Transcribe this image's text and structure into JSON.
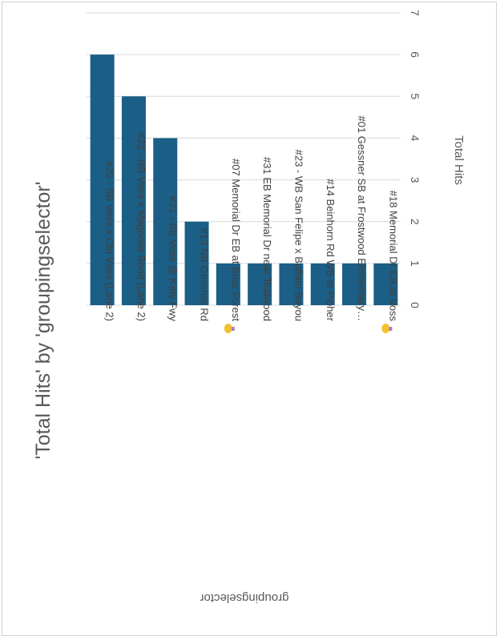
{
  "chart_data": {
    "type": "bar",
    "title": "'Total Hits' by 'groupingselector'",
    "xlabel": "groupingselector",
    "ylabel": "Total Hits",
    "categories": [
      "#20 - SB Voss x Old Voss (Lane 2)",
      "#22 - NB Voss x Magnolia Bend (Lane 2)",
      "#21 - SB Voss @ Katy Fwy",
      "#13 NB Gessner Rd",
      "#07 Memorial Dr EB at Briar Forest",
      "#31 EB Memorial Dr near Tealwood",
      "#23 - WB San Felipe x Buffalo Bayou",
      "#14 Beinhorn Rd WB at Pipher",
      "#01 Gessner SB at Frostwood Elementary…",
      "#18 Memorial Dr EB at Voss"
    ],
    "values": [
      6,
      5,
      4,
      2,
      1,
      1,
      1,
      1,
      1,
      1
    ],
    "bulb_markers": [
      false,
      false,
      false,
      false,
      true,
      false,
      false,
      false,
      false,
      true
    ],
    "ylim": [
      0,
      7
    ],
    "yticks": [
      "0",
      "1",
      "2",
      "3",
      "4",
      "5",
      "6",
      "7"
    ],
    "grid": true,
    "bar_color": "#1b5e86",
    "orientation": "rotated-90-clockwise"
  }
}
